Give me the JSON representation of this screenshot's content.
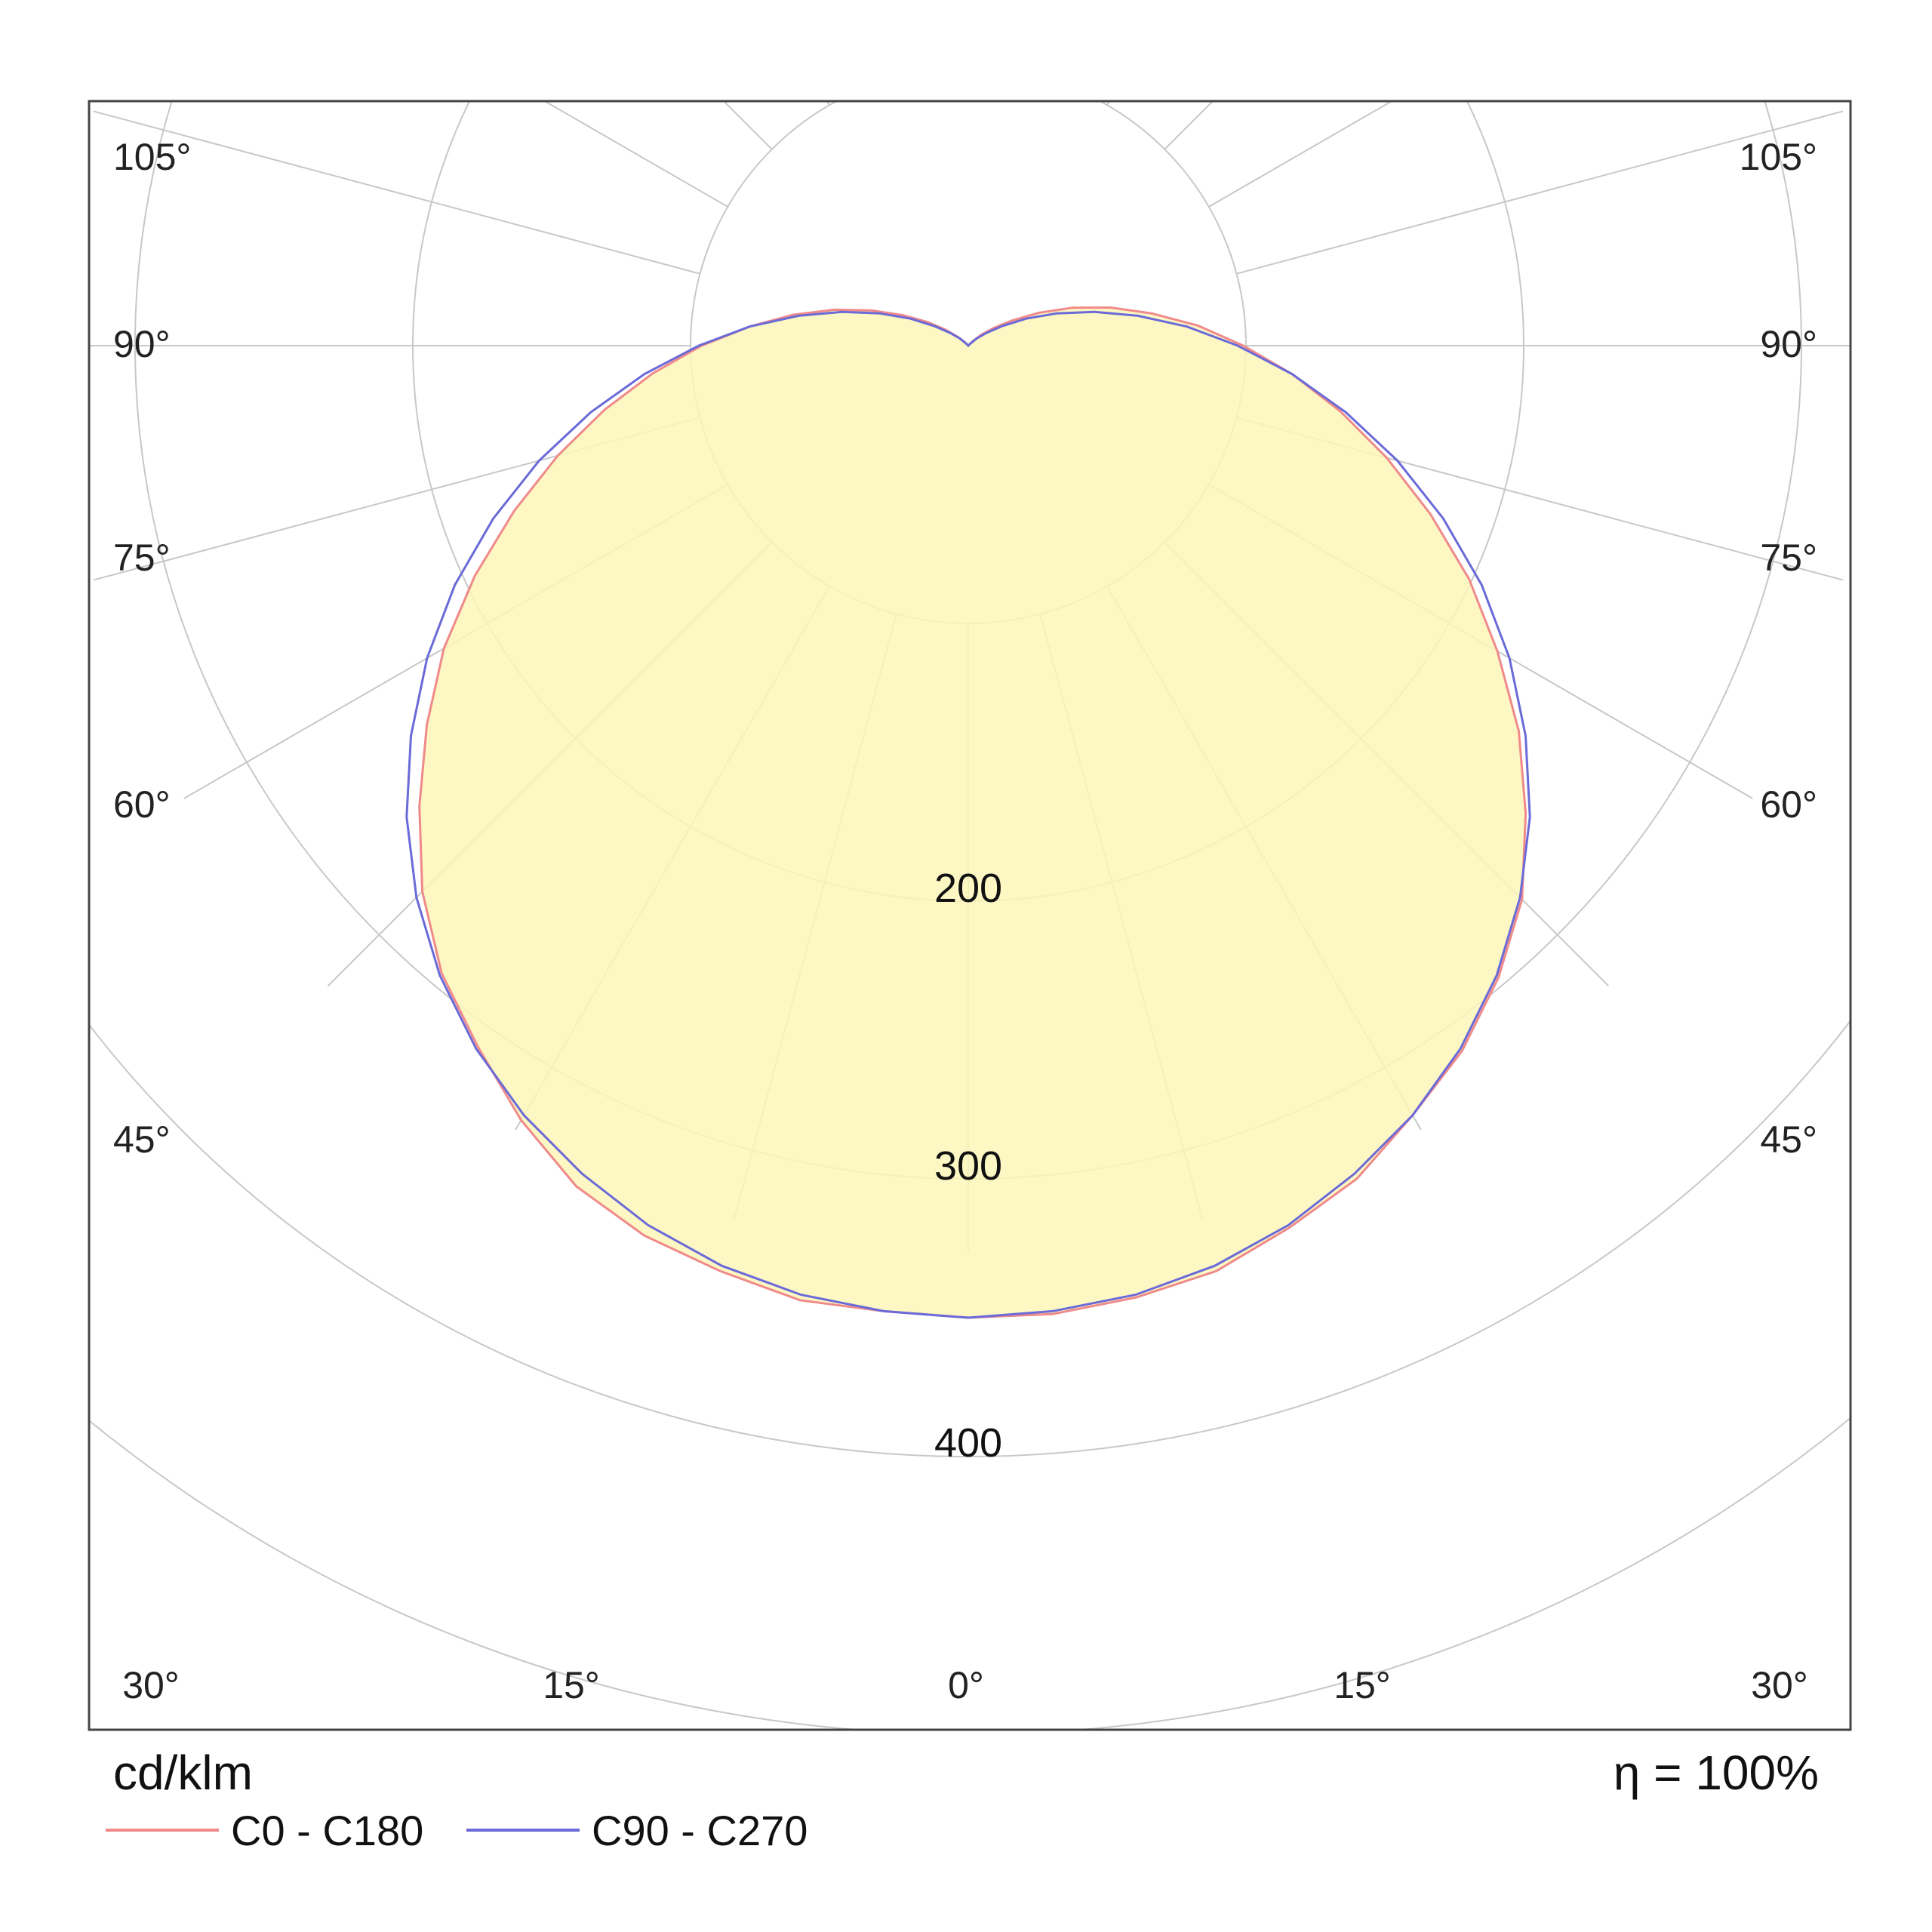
{
  "chart_data": {
    "type": "polar",
    "unit_label": "cd/klm",
    "efficiency_label": "η = 100%",
    "ring_values": [
      100,
      200,
      300,
      400,
      500,
      600
    ],
    "ring_labels": [
      "200",
      "300",
      "400"
    ],
    "angle_labels": {
      "sides": [
        "105°",
        "90°",
        "75°",
        "60°",
        "45°"
      ],
      "bottom": [
        "30°",
        "15°",
        "0°",
        "15°",
        "30°"
      ]
    },
    "grid": true,
    "fill_color": "#fdf6b8",
    "series": [
      {
        "name": "C0 - C180",
        "color": "#f08a8a",
        "angles": [
          0,
          5,
          10,
          15,
          20,
          25,
          30,
          35,
          40,
          45,
          50,
          55,
          60,
          65,
          70,
          75,
          80,
          85,
          90,
          95,
          100,
          105,
          110,
          115,
          120,
          125,
          130,
          135,
          140,
          145,
          150,
          155,
          160,
          165,
          170,
          175,
          180
        ],
        "values_left": [
          350,
          349,
          349,
          345,
          341,
          334,
          322,
          308,
          295,
          278,
          258,
          238,
          218,
          196,
          174,
          153,
          133,
          114,
          96,
          79,
          64,
          50,
          37,
          26,
          17,
          10,
          5,
          2,
          0,
          0,
          0,
          0,
          0,
          0,
          0,
          0,
          0
        ],
        "values_right": [
          350,
          350,
          348,
          345,
          338,
          331,
          320,
          310,
          297,
          282,
          262,
          242,
          220,
          199,
          177,
          156,
          136,
          117,
          99,
          83,
          67,
          53,
          40,
          28,
          18,
          11,
          6,
          2,
          0,
          0,
          0,
          0,
          0,
          0,
          0,
          0,
          0
        ]
      },
      {
        "name": "C90 - C270",
        "color": "#6a6ad8",
        "angles": [
          0,
          5,
          10,
          15,
          20,
          25,
          30,
          35,
          40,
          45,
          50,
          55,
          60,
          65,
          70,
          75,
          80,
          85,
          90,
          95,
          100,
          105,
          110,
          115,
          120,
          125,
          130,
          135,
          140,
          145,
          150,
          155,
          160,
          165,
          170,
          175,
          180
        ],
        "values_left": [
          350,
          349,
          347,
          343,
          337,
          329,
          320,
          309,
          296,
          281,
          264,
          245,
          225,
          204,
          182,
          160,
          138,
          117,
          97,
          79,
          62,
          47,
          34,
          23,
          14,
          8,
          4,
          1,
          0,
          0,
          0,
          0,
          0,
          0,
          0,
          0,
          0
        ],
        "values_right": [
          350,
          349,
          347,
          343,
          337,
          329,
          320,
          309,
          296,
          281,
          264,
          245,
          225,
          204,
          182,
          160,
          138,
          117,
          97,
          79,
          62,
          47,
          34,
          23,
          14,
          8,
          4,
          1,
          0,
          0,
          0,
          0,
          0,
          0,
          0,
          0,
          0
        ]
      }
    ]
  }
}
